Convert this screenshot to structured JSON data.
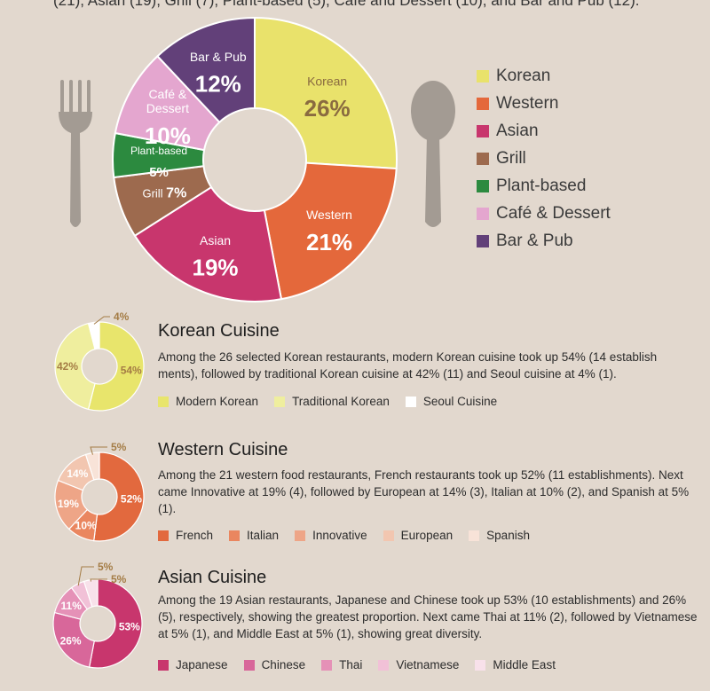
{
  "top_text": "(21), Asian (19), Grill (7), Plant-based (5), Café and Dessert (10), and Bar and Pub (12).",
  "colors": {
    "background": "#e2d8ce",
    "korean": "#e9e26b",
    "western": "#e4683b",
    "asian": "#c8366d",
    "grill": "#9d6a4e",
    "plant_based": "#2c8a3f",
    "cafe_dessert": "#e4a6cf",
    "bar_pub": "#624079",
    "utensils": "#a39b93"
  },
  "chart_data": [
    {
      "type": "pie",
      "style": "donut",
      "slices": [
        {
          "label": "Korean",
          "value": 26,
          "value_label": "26%"
        },
        {
          "label": "Western",
          "value": 21,
          "value_label": "21%"
        },
        {
          "label": "Asian",
          "value": 19,
          "value_label": "19%"
        },
        {
          "label": "Grill",
          "value": 7,
          "value_label": "7%"
        },
        {
          "label": "Plant-based",
          "value": 5,
          "value_label": "5%"
        },
        {
          "label": "Café &\nDessert",
          "value": 10,
          "value_label": "10%"
        },
        {
          "label": "Bar & Pub",
          "value": 12,
          "value_label": "12%"
        }
      ],
      "legend": [
        "Korean",
        "Western",
        "Asian",
        "Grill",
        "Plant-based",
        "Café & Dessert",
        "Bar & Pub"
      ],
      "legend_position": "right"
    },
    {
      "type": "pie",
      "style": "donut",
      "title": "Korean Cuisine",
      "description": "Among the 26 selected Korean restaurants, modern Korean cuisine took up 54% (14 establish ments), followed by traditional Korean cuisine at 42% (11) and Seoul cuisine at 4% (1).",
      "slices": [
        {
          "label": "Modern Korean",
          "value": 54,
          "value_label": "54%"
        },
        {
          "label": "Traditional Korean",
          "value": 42,
          "value_label": "42%"
        },
        {
          "label": "Seoul Cuisine",
          "value": 4,
          "value_label": "4%"
        }
      ]
    },
    {
      "type": "pie",
      "style": "donut",
      "title": "Western Cuisine",
      "description": "Among the 21 western food restaurants, French restaurants took up 52% (11 establishments). Next came Innovative at 19% (4), followed by European at 14% (3), Italian at 10% (2), and Spanish at 5% (1).",
      "slices": [
        {
          "label": "French",
          "value": 52,
          "value_label": "52%"
        },
        {
          "label": "Italian",
          "value": 10,
          "value_label": "10%"
        },
        {
          "label": "Innovative",
          "value": 19,
          "value_label": "19%"
        },
        {
          "label": "European",
          "value": 14,
          "value_label": "14%"
        },
        {
          "label": "Spanish",
          "value": 5,
          "value_label": "5%"
        }
      ]
    },
    {
      "type": "pie",
      "style": "donut",
      "title": "Asian Cuisine",
      "description": "Among the 19 Asian restaurants, Japanese and Chinese took up 53% (10 establishments) and 26% (5), respectively, showing the greatest proportion. Next came Thai at 11% (2), followed by Vietnamese at 5% (1), and Middle East at 5% (1), showing great diversity.",
      "slices": [
        {
          "label": "Japanese",
          "value": 53,
          "value_label": "53%"
        },
        {
          "label": "Chinese",
          "value": 26,
          "value_label": "26%"
        },
        {
          "label": "Thai",
          "value": 11,
          "value_label": "11%"
        },
        {
          "label": "Vietnamese",
          "value": 5,
          "value_label": "5%"
        },
        {
          "label": "Middle East",
          "value": 5,
          "value_label": "5%"
        }
      ]
    }
  ],
  "sub_colors": {
    "korean": [
      "#e8e56c",
      "#efee9e",
      "#ffffff"
    ],
    "western": [
      "#e2693e",
      "#ea865f",
      "#eea587",
      "#f2c6b0",
      "#f8e3d8"
    ],
    "asian": [
      "#c8366d",
      "#d8679a",
      "#e591b7",
      "#f1c1d7",
      "#f8e1ea"
    ]
  },
  "label_colors": {
    "korean": "#a47c45",
    "western": "#ffffff",
    "asian": "#ffffff",
    "callout": "#a47c45"
  }
}
